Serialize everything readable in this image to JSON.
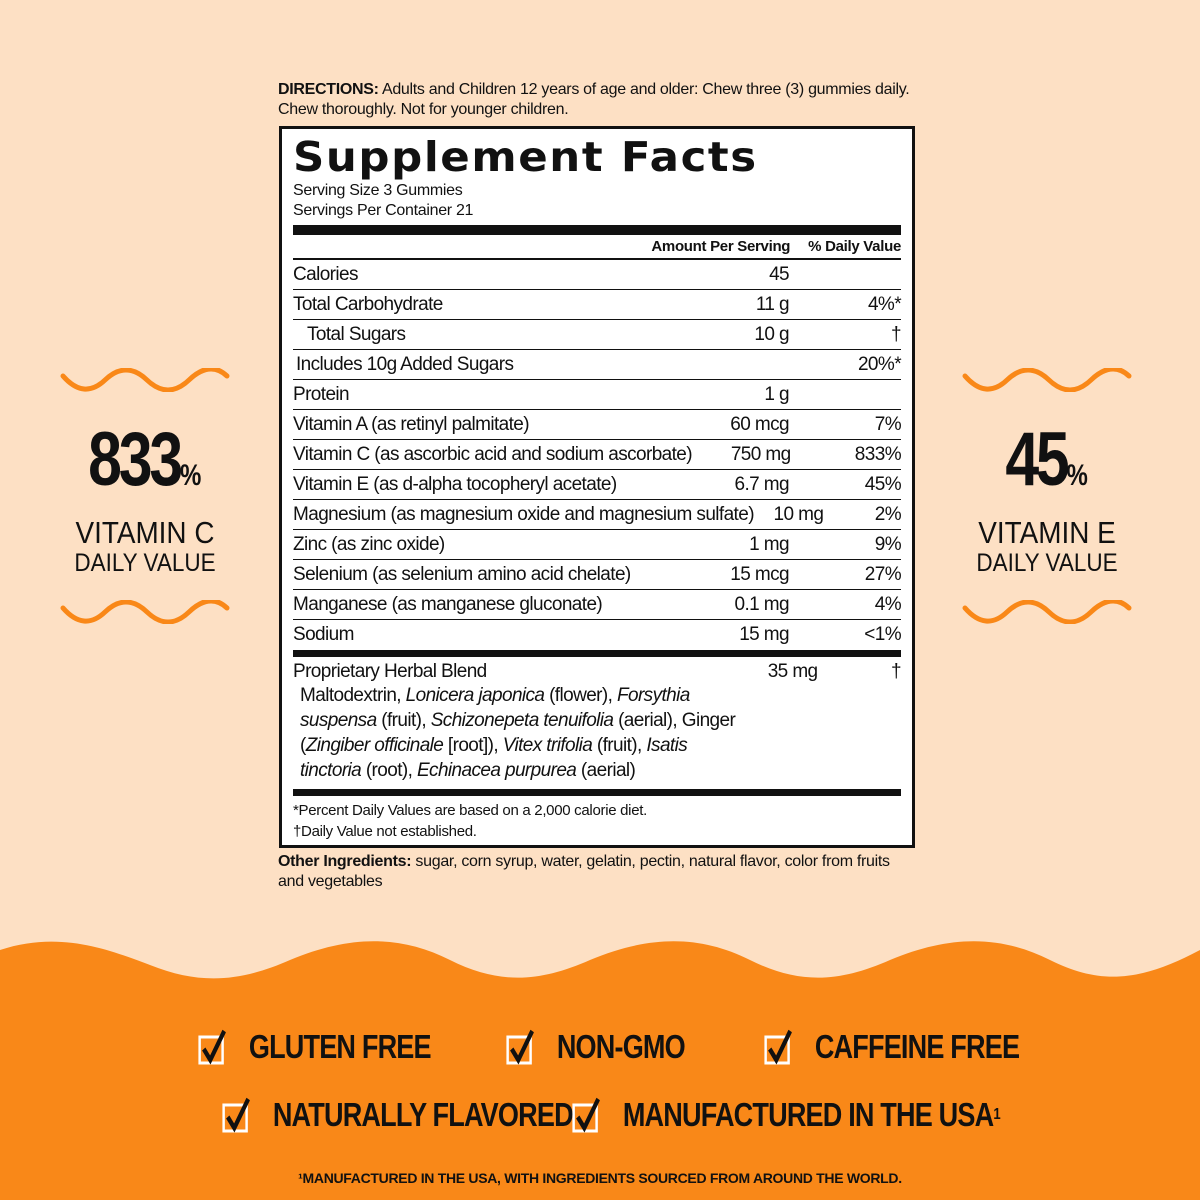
{
  "directions": {
    "label": "DIRECTIONS:",
    "text": " Adults and Children 12 years of age and older: Chew three (3) gummies daily. Chew thoroughly. Not for younger children."
  },
  "facts": {
    "title": "Supplement Facts",
    "serving_size": "Serving Size 3 Gummies",
    "servings_per_container": "Servings Per Container 21",
    "col_amount": "Amount Per Serving",
    "col_dv": "% Daily Value",
    "rows": [
      {
        "name": "Calories",
        "amount": "45",
        "dv": ""
      },
      {
        "name": "Total Carbohydrate",
        "amount": "11 g",
        "dv": "4%*"
      },
      {
        "name": "Total Sugars",
        "amount": "10 g",
        "dv": "†"
      },
      {
        "name": "Includes 10g Added Sugars",
        "amount": "",
        "dv": "20%*"
      },
      {
        "name": "Protein",
        "amount": "1 g",
        "dv": ""
      },
      {
        "name": "Vitamin A (as retinyl palmitate)",
        "amount": "60 mcg",
        "dv": "7%"
      },
      {
        "name": "Vitamin C (as ascorbic acid and sodium ascorbate)",
        "amount": "750 mg",
        "dv": "833%"
      },
      {
        "name": "Vitamin E (as d-alpha tocopheryl acetate)",
        "amount": "6.7 mg",
        "dv": "45%"
      },
      {
        "name": "Magnesium (as magnesium oxide and magnesium sulfate)",
        "amount": "10 mg",
        "dv": "2%"
      },
      {
        "name": "Zinc (as zinc oxide)",
        "amount": "1 mg",
        "dv": "9%"
      },
      {
        "name": "Selenium (as selenium amino acid chelate)",
        "amount": "15 mcg",
        "dv": "27%"
      },
      {
        "name": "Manganese (as manganese gluconate)",
        "amount": "0.1 mg",
        "dv": "4%"
      },
      {
        "name": "Sodium",
        "amount": "15 mg",
        "dv": "<1%"
      }
    ],
    "blend": {
      "name": "Proprietary Herbal Blend",
      "amount": "35 mg",
      "dv": "†",
      "ingredients": [
        "Maltodextrin, ",
        "Lonicera japonica",
        " (flower), ",
        "Forsythia suspensa",
        " (fruit), ",
        "Schizonepeta tenuifolia",
        " (aerial), Ginger (",
        "Zingiber officinale",
        " [root]), ",
        "Vitex trifolia",
        " (fruit), ",
        "Isatis tinctoria",
        " (root), ",
        "Echinacea purpurea",
        " (aerial)"
      ]
    },
    "footnote1": "*Percent Daily Values are based on a 2,000 calorie diet.",
    "footnote2": "†Daily Value not established."
  },
  "other": {
    "label": "Other Ingredients:",
    "text": " sugar, corn syrup, water, gelatin, pectin, natural flavor, color from fruits and vegetables"
  },
  "left_callout": {
    "value": "833",
    "unit": "%",
    "line1": "VITAMIN C",
    "line2": "DAILY VALUE"
  },
  "right_callout": {
    "value": "45",
    "unit": "%",
    "line1": "VITAMIN E",
    "line2": "DAILY VALUE"
  },
  "badges": [
    "GLUTEN FREE",
    "NON-GMO",
    "CAFFEINE FREE",
    "NATURALLY FLAVORED",
    "MANUFACTURED IN THE USA"
  ],
  "badge_superscript": "1",
  "bottom_note": "¹MANUFACTURED IN THE USA, WITH INGREDIENTS SOURCED FROM AROUND THE WORLD.",
  "colors": {
    "background": "#fde0c4",
    "orange": "#f98818",
    "text": "#111111"
  }
}
